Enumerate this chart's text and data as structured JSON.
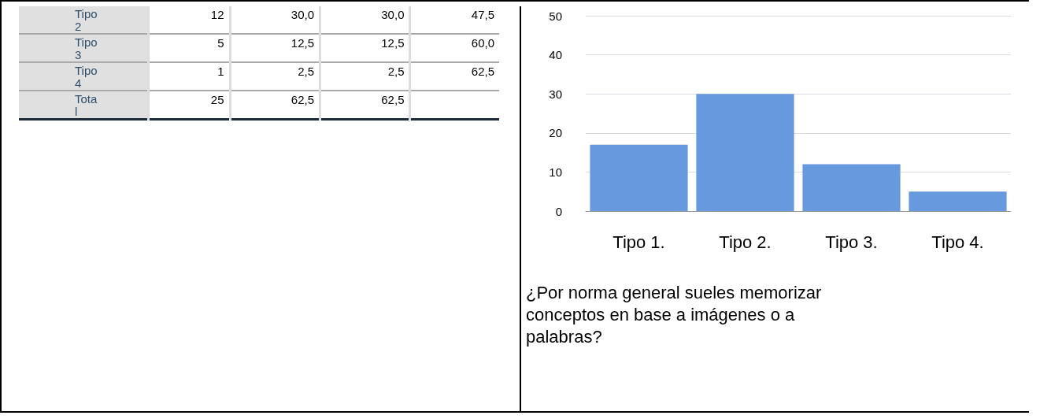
{
  "chart_data": [
    {
      "type": "other",
      "categories": [
        "Tipo 2",
        "Tipo 3",
        "Tipo 4",
        "Total"
      ],
      "series": [
        {
          "values": [
            12,
            5,
            1,
            25
          ],
          "value_labels": [
            "12",
            "5",
            "1",
            "25"
          ]
        },
        {
          "values": [
            30.0,
            12.5,
            2.5,
            62.5
          ],
          "value_labels": [
            "30,0",
            "12,5",
            "2,5",
            "62,5"
          ]
        },
        {
          "values": [
            30.0,
            12.5,
            2.5,
            62.5
          ],
          "value_labels": [
            "30,0",
            "12,5",
            "2,5",
            "62,5"
          ]
        },
        {
          "values": [
            47.5,
            60.0,
            62.5,
            null
          ],
          "value_labels": [
            "47,5",
            "60,0",
            "62,5",
            null
          ]
        }
      ]
    },
    {
      "type": "bar",
      "categories": [
        "Tipo 1.",
        "Tipo 2.",
        "Tipo 3.",
        "Tipo 4."
      ],
      "values": [
        17,
        30,
        12,
        5
      ],
      "color": "#6699dd",
      "ylim": [
        0,
        50
      ],
      "yticks": [
        0,
        10,
        20,
        30,
        40,
        50
      ],
      "grid": "y",
      "annotations": [
        "¿Por norma general sueles memorizar conceptos en base a imágenes o a palabras?"
      ]
    }
  ]
}
